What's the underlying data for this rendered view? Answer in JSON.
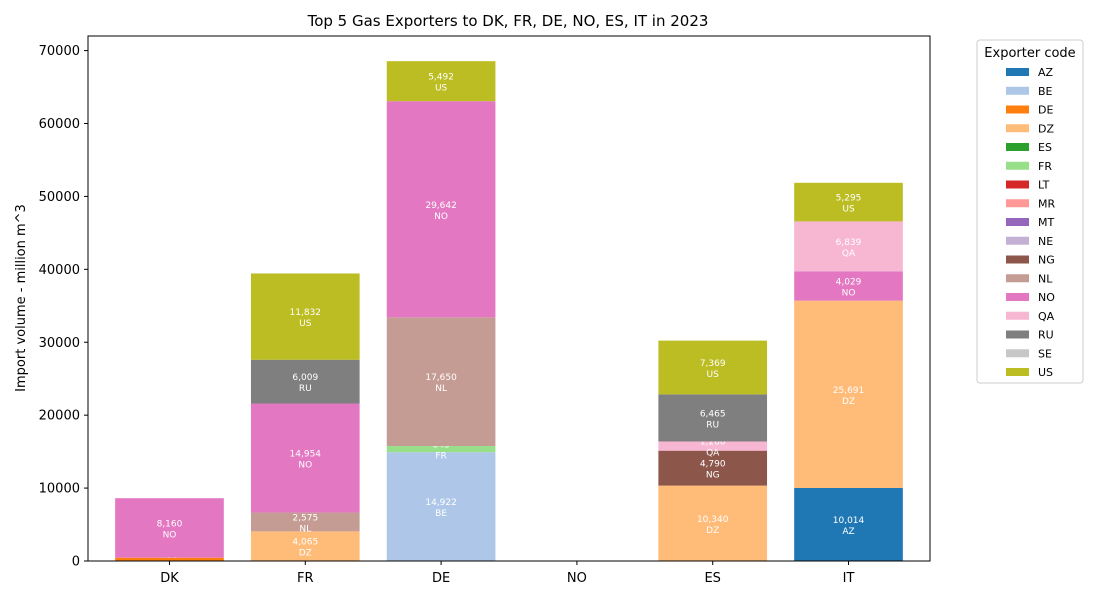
{
  "chart_data": {
    "type": "bar",
    "stacked": true,
    "title": "Top 5 Gas Exporters to DK, FR, DE, NO, ES, IT in 2023",
    "xlabel": "",
    "ylabel": "Import volume - million m^3",
    "ylim": [
      0,
      72000
    ],
    "yticks": [
      0,
      10000,
      20000,
      30000,
      40000,
      50000,
      60000,
      70000
    ],
    "grid": false,
    "legend_title": "Exporter code",
    "legend_position": "outside-right",
    "categories": [
      "DK",
      "FR",
      "DE",
      "NO",
      "ES",
      "IT"
    ],
    "exporters": [
      {
        "code": "AZ",
        "color": "#1f77b4"
      },
      {
        "code": "BE",
        "color": "#aec7e8"
      },
      {
        "code": "DE",
        "color": "#ff7f0e"
      },
      {
        "code": "DZ",
        "color": "#ffbb78"
      },
      {
        "code": "ES",
        "color": "#2ca02c"
      },
      {
        "code": "FR",
        "color": "#98df8a"
      },
      {
        "code": "LT",
        "color": "#d62728"
      },
      {
        "code": "MR",
        "color": "#ff9896"
      },
      {
        "code": "MT",
        "color": "#9467bd"
      },
      {
        "code": "NE",
        "color": "#c5b0d5"
      },
      {
        "code": "NG",
        "color": "#8c564b"
      },
      {
        "code": "NL",
        "color": "#c49c94"
      },
      {
        "code": "NO",
        "color": "#e377c2"
      },
      {
        "code": "QA",
        "color": "#f7b6d2"
      },
      {
        "code": "RU",
        "color": "#7f7f7f"
      },
      {
        "code": "SE",
        "color": "#c7c7c7"
      },
      {
        "code": "US",
        "color": "#bcbd22"
      }
    ],
    "stacks": [
      {
        "category": "DK",
        "segments": [
          {
            "code": "DE",
            "value": 453
          },
          {
            "code": "NO",
            "value": 8160
          }
        ]
      },
      {
        "category": "FR",
        "segments": [
          {
            "code": "DZ",
            "value": 4065
          },
          {
            "code": "NL",
            "value": 2575
          },
          {
            "code": "NO",
            "value": 14954
          },
          {
            "code": "RU",
            "value": 6009
          },
          {
            "code": "US",
            "value": 11832
          }
        ]
      },
      {
        "category": "DE",
        "segments": [
          {
            "code": "BE",
            "value": 14922
          },
          {
            "code": "FR",
            "value": 843
          },
          {
            "code": "NL",
            "value": 17650
          },
          {
            "code": "NO",
            "value": 29642
          },
          {
            "code": "US",
            "value": 5492
          }
        ]
      },
      {
        "category": "NO",
        "segments": []
      },
      {
        "category": "ES",
        "segments": [
          {
            "code": "DZ",
            "value": 10340
          },
          {
            "code": "NG",
            "value": 4790
          },
          {
            "code": "QA",
            "value": 1260
          },
          {
            "code": "RU",
            "value": 6465
          },
          {
            "code": "US",
            "value": 7369
          }
        ]
      },
      {
        "category": "IT",
        "segments": [
          {
            "code": "AZ",
            "value": 10014
          },
          {
            "code": "DZ",
            "value": 25691
          },
          {
            "code": "NO",
            "value": 4029
          },
          {
            "code": "QA",
            "value": 6839
          },
          {
            "code": "US",
            "value": 5295
          }
        ]
      }
    ]
  }
}
